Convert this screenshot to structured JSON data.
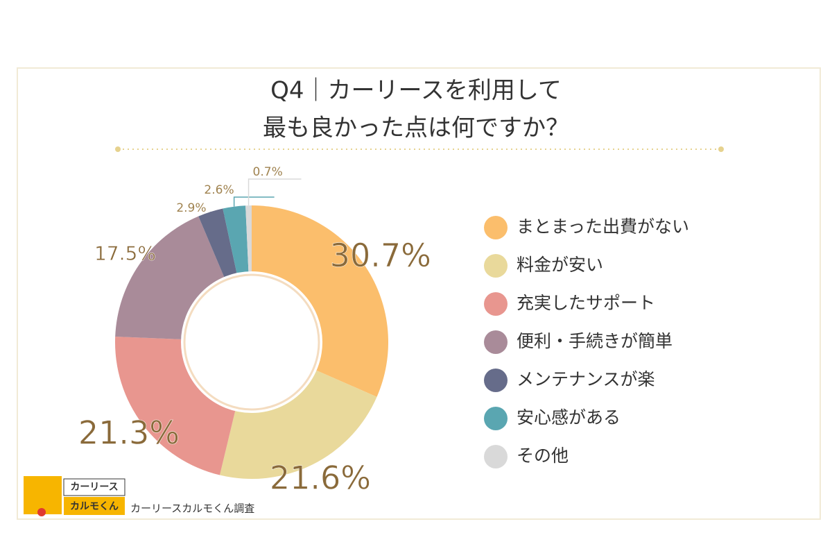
{
  "chart_data": {
    "type": "donut",
    "title": [
      "Q4｜カーリースを利用して",
      "最も良かった点は何ですか？"
    ],
    "categories": [
      "まとまった出費がない",
      "料金が安い",
      "充実したサポート",
      "便利・手続きが簡単",
      "メンテナンスが楽",
      "安心感がある",
      "その他"
    ],
    "values": [
      30.7,
      21.6,
      21.3,
      17.5,
      2.9,
      2.6,
      0.7
    ],
    "value_labels": [
      "30.7%",
      "21.6%",
      "21.3%",
      "17.5%",
      "2.9%",
      "2.6%",
      "0.7%"
    ],
    "colors": [
      "#fbbe6c",
      "#e9d99b",
      "#e8968f",
      "#a98b99",
      "#666c8a",
      "#5aa6b1",
      "#d9d9d9"
    ],
    "source": "カーリースカルモくん調査",
    "logo": [
      "カーリース",
      "カルモくん"
    ]
  }
}
